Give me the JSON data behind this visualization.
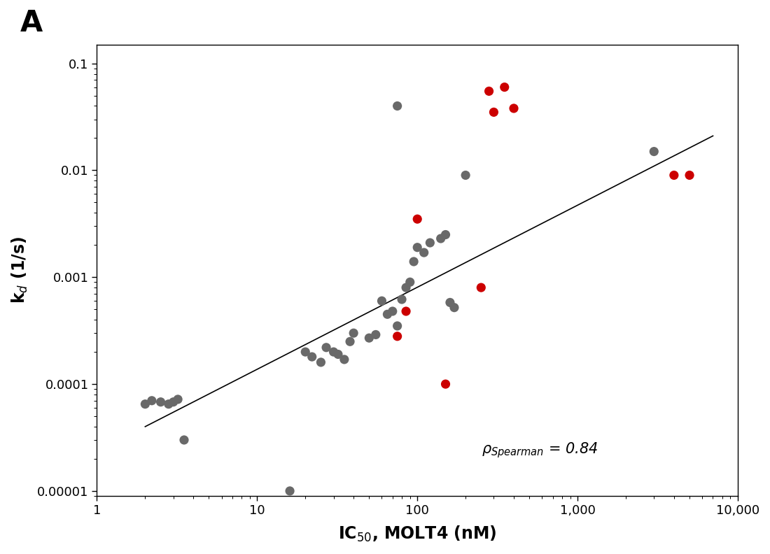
{
  "gray_points": [
    [
      2.0,
      6.5e-05
    ],
    [
      2.2,
      7e-05
    ],
    [
      2.5,
      6.8e-05
    ],
    [
      2.8,
      6.5e-05
    ],
    [
      3.0,
      6.8e-05
    ],
    [
      3.2,
      7.2e-05
    ],
    [
      3.5,
      3e-05
    ],
    [
      16,
      1e-05
    ],
    [
      20,
      0.0002
    ],
    [
      22,
      0.00018
    ],
    [
      25,
      0.00016
    ],
    [
      27,
      0.00022
    ],
    [
      30,
      0.0002
    ],
    [
      32,
      0.00019
    ],
    [
      35,
      0.00017
    ],
    [
      38,
      0.00025
    ],
    [
      40,
      0.0003
    ],
    [
      50,
      0.00027
    ],
    [
      55,
      0.00029
    ],
    [
      60,
      0.0006
    ],
    [
      65,
      0.00045
    ],
    [
      70,
      0.00048
    ],
    [
      75,
      0.00035
    ],
    [
      80,
      0.00062
    ],
    [
      85,
      0.0008
    ],
    [
      90,
      0.0009
    ],
    [
      95,
      0.0014
    ],
    [
      100,
      0.0019
    ],
    [
      110,
      0.0017
    ],
    [
      120,
      0.0021
    ],
    [
      140,
      0.0023
    ],
    [
      150,
      0.0025
    ],
    [
      160,
      0.00058
    ],
    [
      170,
      0.00052
    ],
    [
      200,
      0.009
    ],
    [
      3000,
      0.015
    ],
    [
      75,
      0.04
    ]
  ],
  "red_points": [
    [
      75,
      0.00028
    ],
    [
      85,
      0.00048
    ],
    [
      100,
      0.0035
    ],
    [
      150,
      0.0001
    ],
    [
      250,
      0.0008
    ],
    [
      280,
      0.055
    ],
    [
      350,
      0.06
    ],
    [
      300,
      0.035
    ],
    [
      400,
      0.038
    ],
    [
      4000,
      0.009
    ],
    [
      5000,
      0.009
    ]
  ],
  "line_x": [
    2.0,
    7000
  ],
  "line_y": [
    4e-05,
    0.021
  ],
  "xlim": [
    1,
    10000
  ],
  "ylim": [
    9e-06,
    0.15
  ],
  "xlabel": "IC$_{50}$, MOLT4 (nM)",
  "ylabel": "k$_{d}$ (1/s)",
  "panel_label": "A",
  "spearman_text": "ρ$_{\\mathrm{Spearman}}$ = 0.84",
  "gray_color": "#696969",
  "red_color": "#CC0000",
  "line_color": "#000000",
  "marker_size": 90,
  "background_color": "#ffffff"
}
